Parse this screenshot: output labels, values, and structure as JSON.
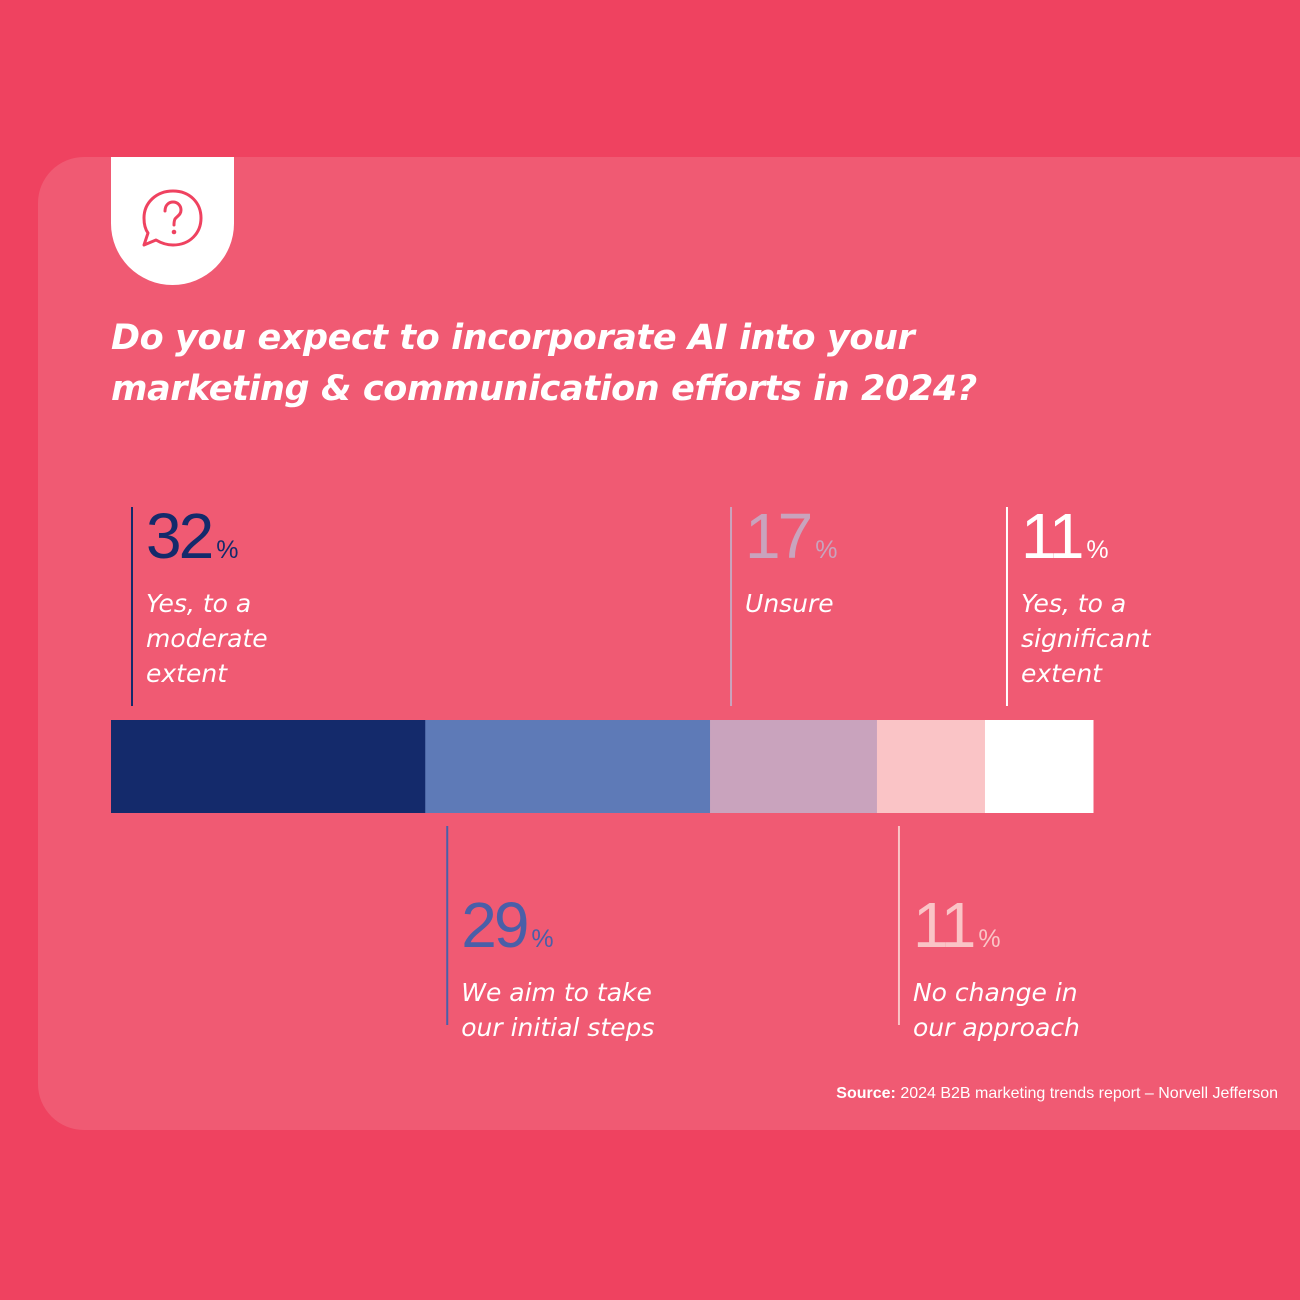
{
  "question": {
    "line1": "Do you expect to incorporate AI into your",
    "line2": "marketing & communication efforts in 2024?"
  },
  "icon": "question-speech-bubble-icon",
  "source": {
    "label": "Source:",
    "text": "2024 B2B marketing trends report – Norvell Jefferson"
  },
  "colors": {
    "background": "#ef4260",
    "card": "#f05a73",
    "accent": "#142a6b"
  },
  "chart_data": {
    "type": "bar",
    "orientation": "horizontal-stacked",
    "total": 100,
    "title": "Do you expect to incorporate AI into your marketing & communication efforts in 2024?",
    "series": [
      {
        "name": "Yes, to a moderate extent",
        "value": 32,
        "label_lines": [
          "Yes, to a",
          "moderate",
          "extent"
        ],
        "color": "#142a6b",
        "number_color": "#142a6b",
        "placement": "above"
      },
      {
        "name": "We aim to take our initial steps",
        "value": 29,
        "label_lines": [
          "We aim to take",
          "our initial steps"
        ],
        "color": "#5e7ab7",
        "number_color": "#4a5fa8",
        "placement": "below"
      },
      {
        "name": "Unsure",
        "value": 17,
        "label_lines": [
          "Unsure"
        ],
        "color": "#c9a3bd",
        "number_color": "#c9a3bd",
        "placement": "above"
      },
      {
        "name": "No change in our approach",
        "value": 11,
        "label_lines": [
          "No change in",
          "our approach"
        ],
        "color": "#fac4c6",
        "number_color": "#fac4c6",
        "placement": "below"
      },
      {
        "name": "Yes, to a significant extent",
        "value": 11,
        "label_lines": [
          "Yes, to a",
          "significant",
          "extent"
        ],
        "color": "#ffffff",
        "number_color": "#ffffff",
        "placement": "above"
      }
    ],
    "percent_symbol": "%",
    "legend": "none",
    "grid": false
  }
}
